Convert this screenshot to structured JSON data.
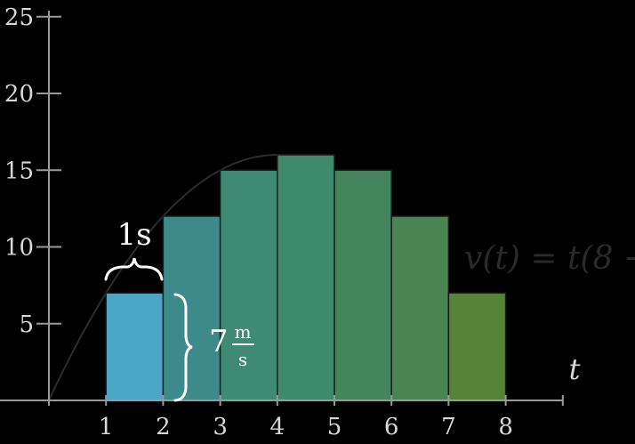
{
  "chart_data": {
    "type": "bar",
    "x_ticks": [
      "1",
      "2",
      "3",
      "4",
      "5",
      "6",
      "7",
      "8"
    ],
    "y_ticks": [
      "5",
      "10",
      "15",
      "20",
      "25"
    ],
    "xlabel": "t",
    "xlim": [
      0,
      9
    ],
    "ylim": [
      0,
      25
    ],
    "bars": [
      {
        "t_start": 1,
        "t_end": 2,
        "value": 7
      },
      {
        "t_start": 2,
        "t_end": 3,
        "value": 12
      },
      {
        "t_start": 3,
        "t_end": 4,
        "value": 15
      },
      {
        "t_start": 4,
        "t_end": 5,
        "value": 16
      },
      {
        "t_start": 5,
        "t_end": 6,
        "value": 15
      },
      {
        "t_start": 6,
        "t_end": 7,
        "value": 12
      },
      {
        "t_start": 7,
        "t_end": 8,
        "value": 7
      }
    ],
    "bar_colors": [
      "#4aa6c4",
      "#3d8a8a",
      "#3f8a72",
      "#3f8a6c",
      "#44855e",
      "#4a8452",
      "#558438"
    ],
    "curve": {
      "expression": "v(t) = t(8 −",
      "x_range": [
        0,
        8
      ]
    },
    "annotations": {
      "width_label": "1s",
      "height_label_value": "7",
      "height_label_unit_num": "m",
      "height_label_unit_den": "s"
    },
    "grid": false,
    "colors": {
      "background": "#000000",
      "axis": "#9a9a9a",
      "text": "#d8d8d8",
      "curve": "#2c2c2c"
    }
  }
}
